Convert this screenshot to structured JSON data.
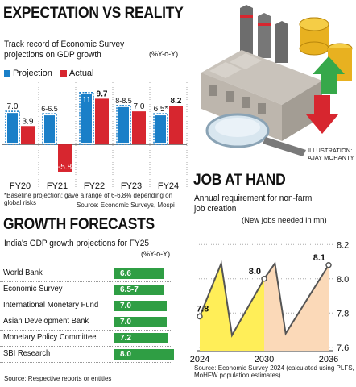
{
  "left_top": {
    "title": "EXPECTATION VS REALITY",
    "subtitle_line1": "Track record of Economic Survey",
    "subtitle_line2": "projections on GDP growth",
    "unit": "(%Y-o-Y)",
    "legend_projection": "Projection",
    "legend_actual": "Actual",
    "footnote": "*Baseline projection; gave a range of 6-6.8% depending on global risks",
    "source": "Source: Economic Surveys, Mospi"
  },
  "growth": {
    "title": "GROWTH FORECASTS",
    "subtitle": "India's GDP growth projections for FY25",
    "unit": "(%Y-o-Y)",
    "source": "Source: Respective reports or entities",
    "rows": [
      {
        "label": "World Bank",
        "value": "6.6"
      },
      {
        "label": "Economic Survey",
        "value": "6.5-7"
      },
      {
        "label": "International Monetary Fund",
        "value": "7.0"
      },
      {
        "label": "Asian Development Bank",
        "value": "7.0"
      },
      {
        "label": "Monetary Policy Committee",
        "value": "7.2"
      },
      {
        "label": "SBI Research",
        "value": "8.0"
      }
    ]
  },
  "illustration": {
    "credit_line1": "ILLUSTRATION:",
    "credit_line2": "AJAY MOHANTY"
  },
  "job": {
    "title": "JOB AT HAND",
    "subtitle_line1": "Annual requirement for non-farm",
    "subtitle_line2": "job creation",
    "unit": "(New jobs needed in mn)",
    "source": "Source: Economic Survey 2024 (calculated using PLFS, MoHFW population estimates)"
  },
  "colors": {
    "projection": "#1a7fc8",
    "actual": "#d7262f",
    "forecast_bar": "#2f9e44",
    "job_fill_yellow": "#ffee58",
    "job_fill_peach": "#fbd9b8"
  },
  "chart_data": [
    {
      "type": "bar",
      "categories": [
        "FY20",
        "FY21",
        "FY22",
        "FY23",
        "FY24"
      ],
      "series": [
        {
          "name": "Projection",
          "values": [
            7.0,
            6.5,
            11,
            8.25,
            6.5
          ],
          "labels": [
            "7.0",
            "6-6.5",
            "11",
            "8-8.5",
            "6.5*"
          ]
        },
        {
          "name": "Actual",
          "values": [
            3.9,
            -5.8,
            9.7,
            7.0,
            8.2
          ],
          "labels": [
            "3.9",
            "-5.8",
            "9.7",
            "7.0",
            "8.2"
          ]
        }
      ],
      "ylim": [
        -7,
        12.5
      ]
    },
    {
      "type": "bar",
      "title": "GROWTH FORECASTS",
      "categories": [
        "World Bank",
        "Economic Survey",
        "International Monetary Fund",
        "Asian Development Bank",
        "Monetary Policy Committee",
        "SBI Research"
      ],
      "values": [
        6.6,
        6.75,
        7.0,
        7.0,
        7.2,
        8.0
      ],
      "labels": [
        "6.6",
        "6.5-7",
        "7.0",
        "7.0",
        "7.2",
        "8.0"
      ]
    },
    {
      "type": "area",
      "x_ticks": [
        "2024",
        "2030",
        "2036"
      ],
      "y_ticks": [
        "8.2",
        "8.0",
        "7.8",
        "7.6"
      ],
      "ylim": [
        7.58,
        8.22
      ],
      "segments": [
        {
          "points": [
            [
              2024,
              7.78
            ],
            [
              2026,
              8.09
            ],
            [
              2027,
              7.67
            ],
            [
              2030,
              8.0
            ]
          ],
          "fill": "yellow"
        },
        {
          "points": [
            [
              2030,
              8.0
            ],
            [
              2031,
              8.09
            ],
            [
              2032,
              7.68
            ],
            [
              2036,
              8.08
            ]
          ],
          "fill": "peach"
        }
      ],
      "labels": [
        {
          "x": 2024,
          "y": 7.78,
          "text": "7.8"
        },
        {
          "x": 2030,
          "y": 8.0,
          "text": "8.0"
        },
        {
          "x": 2036,
          "y": 8.08,
          "text": "8.1"
        }
      ]
    }
  ]
}
